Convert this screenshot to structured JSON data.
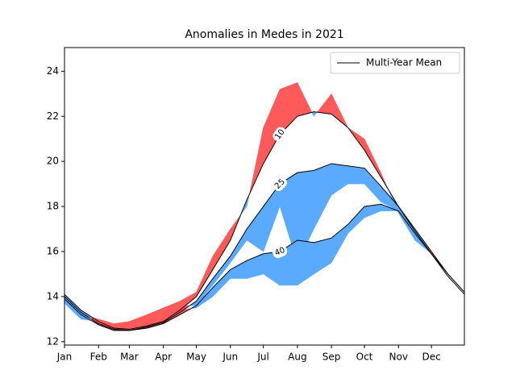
{
  "chart_data": {
    "type": "anomaly",
    "title": "Anomalies in Medes in 2021",
    "legend_label": "Multi-Year Mean",
    "legend_position": "upper right",
    "mean_color": "#000000",
    "colors": {
      "above": "#ff5a5a",
      "below": "#5aaaff"
    },
    "x": [
      0,
      15,
      31,
      45,
      59,
      75,
      90,
      105,
      120,
      135,
      151,
      166,
      181,
      196,
      212,
      227,
      243,
      258,
      273,
      288,
      304,
      319,
      334,
      349,
      364
    ],
    "series": [
      {
        "name": "10",
        "mean": [
          14.1,
          13.4,
          12.9,
          12.6,
          12.55,
          12.7,
          12.9,
          13.4,
          14.0,
          15.2,
          16.5,
          18.3,
          19.9,
          21.2,
          22.0,
          22.2,
          22.1,
          21.5,
          20.5,
          19.3,
          18.0,
          17.0,
          16.0,
          15.0,
          14.2
        ],
        "actual": [
          13.9,
          13.2,
          13.0,
          12.8,
          12.9,
          13.2,
          13.5,
          13.8,
          14.2,
          15.8,
          17.0,
          18.0,
          21.5,
          23.2,
          23.5,
          22.0,
          23.0,
          21.5,
          21.0,
          19.5,
          17.7,
          16.5,
          16.0,
          15.0,
          14.2
        ]
      },
      {
        "name": "25",
        "mean": [
          14.0,
          13.3,
          12.8,
          12.55,
          12.5,
          12.65,
          12.85,
          13.3,
          13.8,
          14.8,
          15.8,
          17.0,
          18.0,
          19.0,
          19.5,
          19.6,
          19.9,
          19.8,
          19.7,
          18.9,
          18.0,
          16.9,
          15.9,
          15.0,
          14.2
        ],
        "actual": [
          13.8,
          13.1,
          13.0,
          12.7,
          12.8,
          13.0,
          13.4,
          13.6,
          13.6,
          14.5,
          15.5,
          16.5,
          16.0,
          18.0,
          15.5,
          17.0,
          18.5,
          19.0,
          19.0,
          18.2,
          17.8,
          16.8,
          16.0,
          15.0,
          14.2
        ]
      },
      {
        "name": "40",
        "mean": [
          13.9,
          13.2,
          12.75,
          12.5,
          12.5,
          12.6,
          12.8,
          13.2,
          13.6,
          14.4,
          15.2,
          15.6,
          15.9,
          16.0,
          16.5,
          16.4,
          16.6,
          17.2,
          18.0,
          18.1,
          17.8,
          16.8,
          15.9,
          14.9,
          14.1
        ],
        "actual": [
          13.7,
          13.0,
          12.9,
          12.6,
          12.7,
          12.9,
          13.3,
          13.4,
          13.5,
          14.0,
          14.8,
          14.8,
          15.0,
          14.5,
          14.5,
          15.0,
          15.5,
          16.8,
          17.5,
          17.8,
          17.8,
          16.5,
          15.9,
          14.9,
          14.1
        ]
      }
    ],
    "xlim": [
      0,
      364
    ],
    "xticks": [
      {
        "value": 0,
        "label": "Jan"
      },
      {
        "value": 31,
        "label": "Feb"
      },
      {
        "value": 59,
        "label": "Mar"
      },
      {
        "value": 90,
        "label": "Apr"
      },
      {
        "value": 120,
        "label": "May"
      },
      {
        "value": 151,
        "label": "Jun"
      },
      {
        "value": 181,
        "label": "Jul"
      },
      {
        "value": 212,
        "label": "Aug"
      },
      {
        "value": 243,
        "label": "Sep"
      },
      {
        "value": 273,
        "label": "Oct"
      },
      {
        "value": 304,
        "label": "Nov"
      },
      {
        "value": 334,
        "label": "Dec"
      }
    ],
    "ylim": [
      11.85,
      25.05
    ],
    "yticks": [
      12,
      14,
      16,
      18,
      20,
      22,
      24
    ],
    "grid": false
  }
}
